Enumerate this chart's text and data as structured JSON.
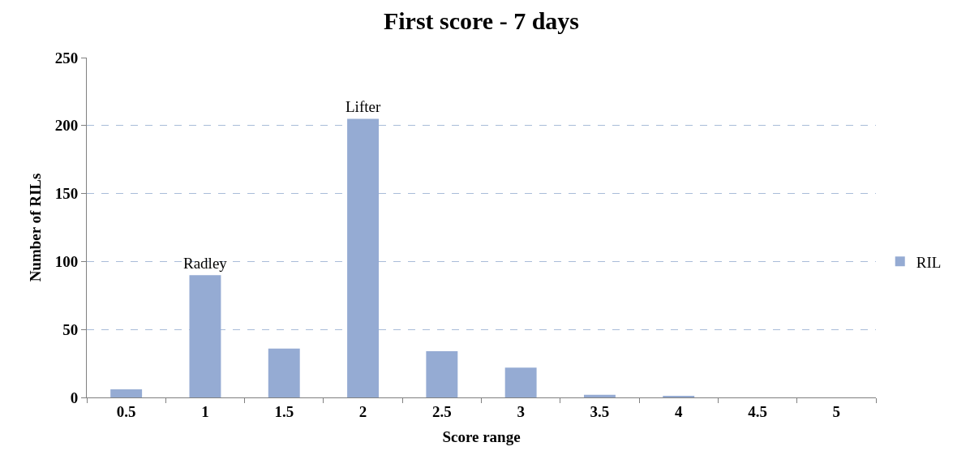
{
  "chart_data": {
    "type": "bar",
    "title": "First score - 7 days",
    "xlabel": "Score range",
    "ylabel": "Number of RILs",
    "categories": [
      "0.5",
      "1",
      "1.5",
      "2",
      "2.5",
      "3",
      "3.5",
      "4",
      "4.5",
      "5"
    ],
    "series": [
      {
        "name": "RIL",
        "color": "#95abd3",
        "values": [
          6,
          90,
          36,
          205,
          34,
          22,
          2,
          1,
          0,
          0
        ]
      }
    ],
    "ylim": [
      0,
      250
    ],
    "yticks": [
      0,
      50,
      100,
      150,
      200,
      250
    ],
    "grid": "y",
    "legend": "right",
    "annotations": [
      {
        "text": "Radley",
        "x": "1",
        "y": 90
      },
      {
        "text": "Lifter",
        "x": "2",
        "y": 205
      }
    ]
  }
}
